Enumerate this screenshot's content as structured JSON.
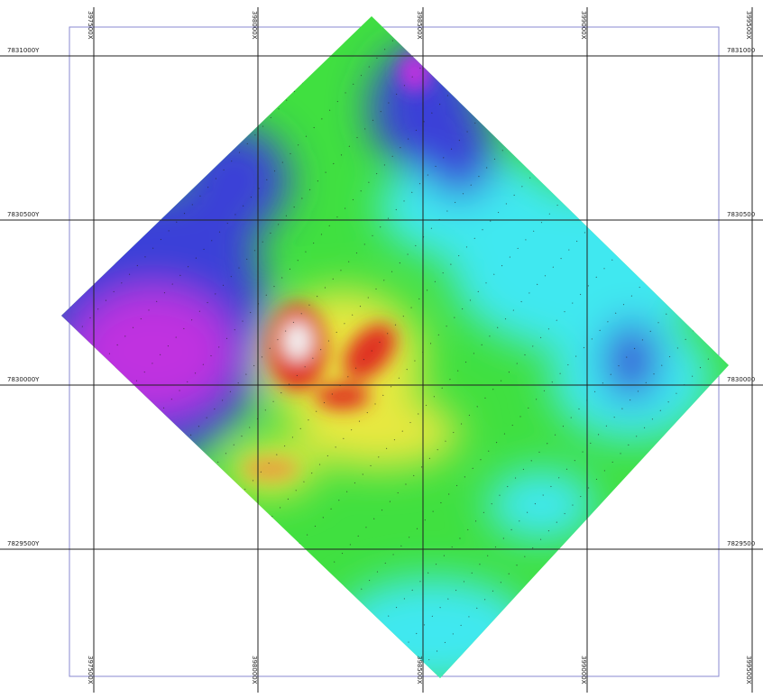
{
  "map": {
    "x_labels": [
      "397500X",
      "398000X",
      "398500X",
      "399000X",
      "399500X"
    ],
    "y_labels": [
      "7831000Y",
      "7830500Y",
      "7830000Y",
      "7829500Y"
    ],
    "y_labels_right": [
      "7831000",
      "7830500",
      "7830000",
      "7829500"
    ],
    "colors": {
      "grid": "#222222",
      "boundary": "#8a8ad0",
      "magenta": "#c030e0",
      "blue": "#3a40d8",
      "cyan": "#40e8f0",
      "green": "#40e040",
      "yellow": "#e8e840",
      "red": "#e03020",
      "white": "#f4f4f4"
    }
  }
}
